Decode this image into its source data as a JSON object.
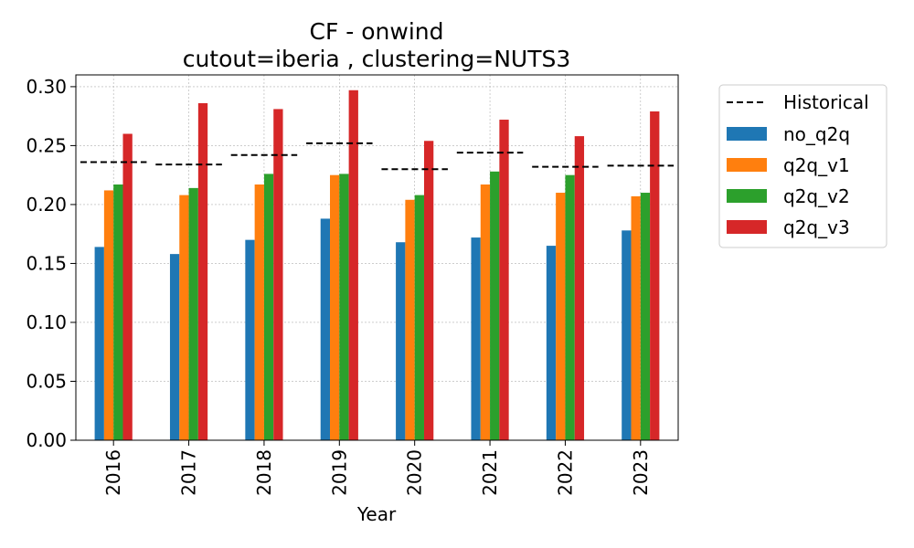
{
  "chart_data": {
    "type": "bar",
    "title_line1": "CF - onwind",
    "title_line2": "cutout=iberia , clustering=NUTS3",
    "xlabel": "Year",
    "ylabel": "",
    "ylim": [
      0,
      0.31
    ],
    "yticks": [
      "0.00",
      "0.05",
      "0.10",
      "0.15",
      "0.20",
      "0.25",
      "0.30"
    ],
    "grid": true,
    "legend_position": "outside-top-right",
    "categories": [
      "2016",
      "2017",
      "2018",
      "2019",
      "2020",
      "2021",
      "2022",
      "2023"
    ],
    "series": [
      {
        "name": "no_q2q",
        "color": "#1f77b4",
        "values": [
          0.164,
          0.158,
          0.17,
          0.188,
          0.168,
          0.172,
          0.165,
          0.178
        ]
      },
      {
        "name": "q2q_v1",
        "color": "#ff7f0e",
        "values": [
          0.212,
          0.208,
          0.217,
          0.225,
          0.204,
          0.217,
          0.21,
          0.207
        ]
      },
      {
        "name": "q2q_v2",
        "color": "#2ca02c",
        "values": [
          0.217,
          0.214,
          0.226,
          0.226,
          0.208,
          0.228,
          0.225,
          0.21
        ]
      },
      {
        "name": "q2q_v3",
        "color": "#d62728",
        "values": [
          0.26,
          0.286,
          0.281,
          0.297,
          0.254,
          0.272,
          0.258,
          0.279
        ]
      }
    ],
    "historical": {
      "name": "Historical",
      "color": "#000000",
      "style": "dashed",
      "values": [
        0.236,
        0.234,
        0.242,
        0.252,
        0.23,
        0.244,
        0.232,
        0.233
      ]
    }
  }
}
